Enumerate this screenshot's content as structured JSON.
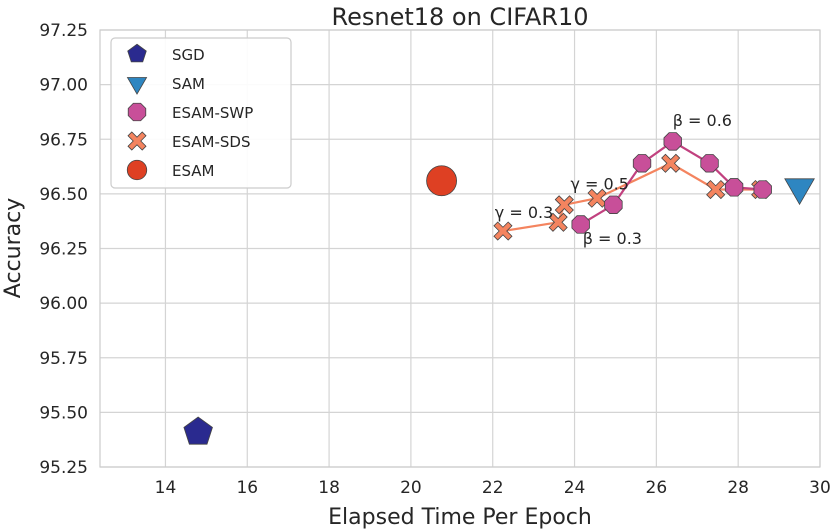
{
  "chart_data": {
    "type": "scatter",
    "title": "Resnet18 on CIFAR10",
    "xlabel": "Elapsed Time Per Epoch",
    "ylabel": "Accuracy",
    "xlim": [
      12.4,
      30.0
    ],
    "ylim": [
      95.25,
      97.25
    ],
    "xticks": [
      14,
      16,
      18,
      20,
      22,
      24,
      26,
      28,
      30
    ],
    "xtick_labels": [
      "14",
      "16",
      "18",
      "20",
      "22",
      "24",
      "26",
      "28",
      "30"
    ],
    "yticks": [
      95.25,
      95.5,
      95.75,
      96.0,
      96.25,
      96.5,
      96.75,
      97.0,
      97.25
    ],
    "ytick_labels": [
      "95.25",
      "95.50",
      "95.75",
      "96.00",
      "96.25",
      "96.50",
      "96.75",
      "97.00",
      "97.25"
    ],
    "grid": true,
    "legend_position": "top-left",
    "series": [
      {
        "name": "SGD",
        "marker": "pentagon",
        "color": "#2a2a8f",
        "x": [
          14.8
        ],
        "y": [
          95.41
        ],
        "line": false
      },
      {
        "name": "SAM",
        "marker": "triangle-down",
        "color": "#2e86c1",
        "x": [
          29.5
        ],
        "y": [
          96.53
        ],
        "line": false
      },
      {
        "name": "ESAM-SWP",
        "marker": "octagon",
        "color": "#c84f99",
        "line_color": "#c1417f",
        "x": [
          24.15,
          24.95,
          25.65,
          26.4,
          27.3,
          27.9,
          28.6
        ],
        "y": [
          96.36,
          96.45,
          96.64,
          96.74,
          96.64,
          96.53,
          96.52
        ],
        "line": true
      },
      {
        "name": "ESAM-SDS",
        "marker": "x",
        "color": "#f4845f",
        "line_color": "#f4845f",
        "x": [
          22.25,
          23.6,
          23.75,
          24.55,
          26.35,
          27.45,
          28.55
        ],
        "y": [
          96.33,
          96.37,
          96.45,
          96.48,
          96.64,
          96.52,
          96.52
        ],
        "line": true
      },
      {
        "name": "ESAM",
        "marker": "circle",
        "color": "#de4023",
        "x": [
          20.75
        ],
        "y": [
          96.56
        ],
        "line": false
      }
    ],
    "annotations": [
      {
        "text": "γ = 0.3",
        "x": 22.05,
        "y": 96.39
      },
      {
        "text": "γ = 0.5",
        "x": 23.9,
        "y": 96.52
      },
      {
        "text": "β = 0.3",
        "x": 24.2,
        "y": 96.27
      },
      {
        "text": "β = 0.6",
        "x": 26.4,
        "y": 96.81
      }
    ]
  }
}
